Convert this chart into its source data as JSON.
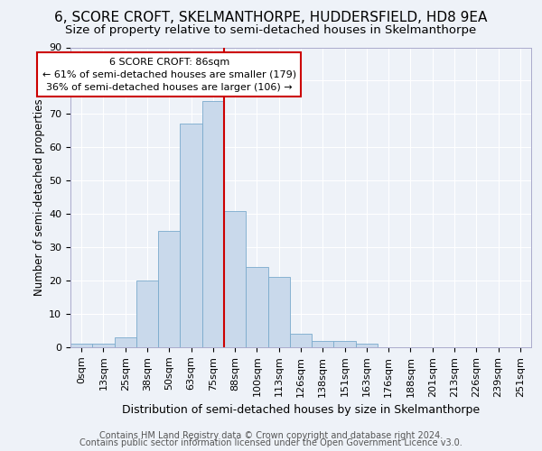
{
  "title": "6, SCORE CROFT, SKELMANTHORPE, HUDDERSFIELD, HD8 9EA",
  "subtitle": "Size of property relative to semi-detached houses in Skelmanthorpe",
  "xlabel": "Distribution of semi-detached houses by size in Skelmanthorpe",
  "ylabel": "Number of semi-detached properties",
  "footer1": "Contains HM Land Registry data © Crown copyright and database right 2024.",
  "footer2": "Contains public sector information licensed under the Open Government Licence v3.0.",
  "bar_labels": [
    "0sqm",
    "13sqm",
    "25sqm",
    "38sqm",
    "50sqm",
    "63sqm",
    "75sqm",
    "88sqm",
    "100sqm",
    "113sqm",
    "126sqm",
    "138sqm",
    "151sqm",
    "163sqm",
    "176sqm",
    "188sqm",
    "201sqm",
    "213sqm",
    "226sqm",
    "239sqm",
    "251sqm"
  ],
  "bar_values": [
    1,
    1,
    3,
    20,
    35,
    67,
    74,
    41,
    24,
    21,
    4,
    2,
    2,
    1,
    0,
    0,
    0,
    0,
    0,
    0,
    0
  ],
  "property_label": "6 SCORE CROFT: 86sqm",
  "smaller_pct": 61,
  "smaller_count": 179,
  "larger_pct": 36,
  "larger_count": 106,
  "bar_color": "#c9d9eb",
  "bar_edge_color": "#7aaacc",
  "line_color": "#cc0000",
  "annotation_box_edge": "#cc0000",
  "ylim": [
    0,
    90
  ],
  "yticks": [
    0,
    10,
    20,
    30,
    40,
    50,
    60,
    70,
    80,
    90
  ],
  "background_color": "#eef2f8",
  "axes_background": "#eef2f8",
  "grid_color": "#ffffff",
  "title_fontsize": 11,
  "subtitle_fontsize": 9.5,
  "xlabel_fontsize": 9,
  "ylabel_fontsize": 8.5,
  "tick_fontsize": 8,
  "annotation_fontsize": 8,
  "footer_fontsize": 7
}
